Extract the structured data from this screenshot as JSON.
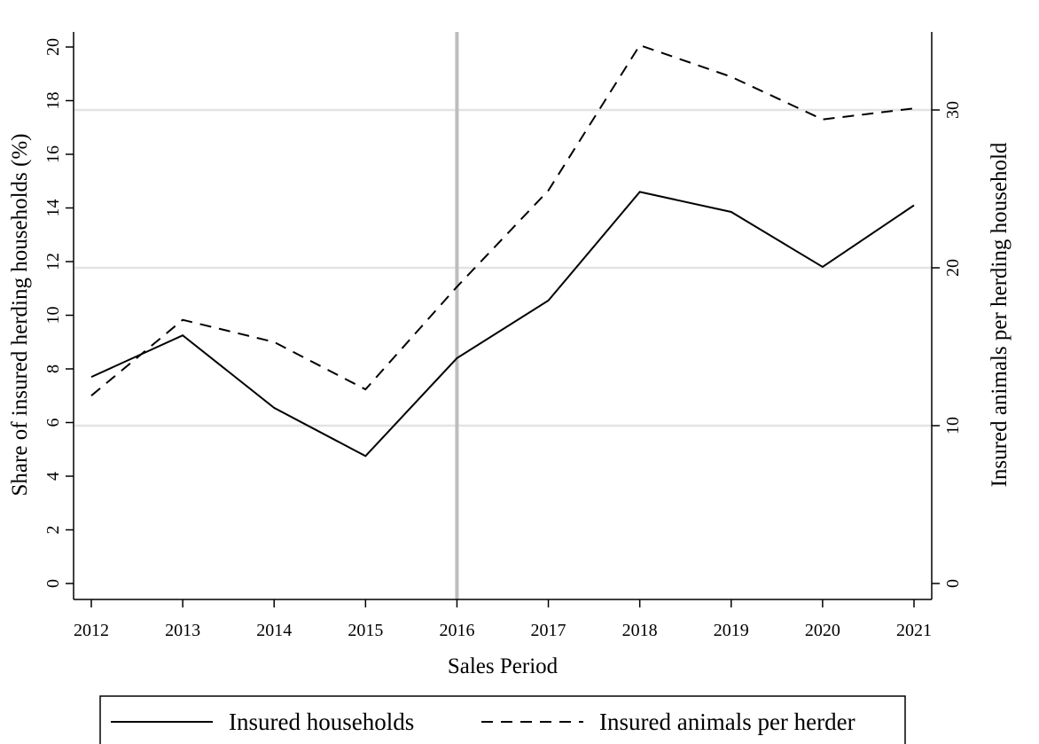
{
  "chart_data": {
    "type": "line",
    "title": "",
    "xlabel": "Sales Period",
    "ylabel_left": "Share of insured herding households (%)",
    "ylabel_right": "Insured animals per herding household",
    "x": [
      2012,
      2013,
      2014,
      2015,
      2016,
      2017,
      2018,
      2019,
      2020,
      2021
    ],
    "x_ticks": [
      "2012",
      "2013",
      "2014",
      "2015",
      "2016",
      "2017",
      "2018",
      "2019",
      "2020",
      "2021"
    ],
    "ylim_left": [
      0,
      20
    ],
    "yticks_left": [
      "0",
      "2",
      "4",
      "6",
      "8",
      "10",
      "12",
      "14",
      "16",
      "18",
      "20"
    ],
    "ylim_right": [
      0,
      34.2
    ],
    "yticks_right": [
      "0",
      "10",
      "20",
      "30"
    ],
    "vertical_reference_x": 2016,
    "grid": "horizontal at right-axis ticks",
    "legend_position": "bottom",
    "series": [
      {
        "name": "Insured households",
        "axis": "left",
        "style": "solid",
        "values": [
          7.7,
          9.25,
          6.55,
          4.75,
          8.4,
          10.55,
          14.6,
          13.85,
          11.8,
          14.1
        ]
      },
      {
        "name": "Insured animals per herder",
        "axis": "right",
        "style": "dashed",
        "values": [
          11.9,
          16.7,
          15.3,
          12.3,
          18.8,
          24.9,
          34.1,
          32.1,
          29.4,
          30.1
        ]
      }
    ],
    "colors": {
      "line": "#000000",
      "grid": "#e3e3e3",
      "reference": "#bdbdbd"
    }
  }
}
